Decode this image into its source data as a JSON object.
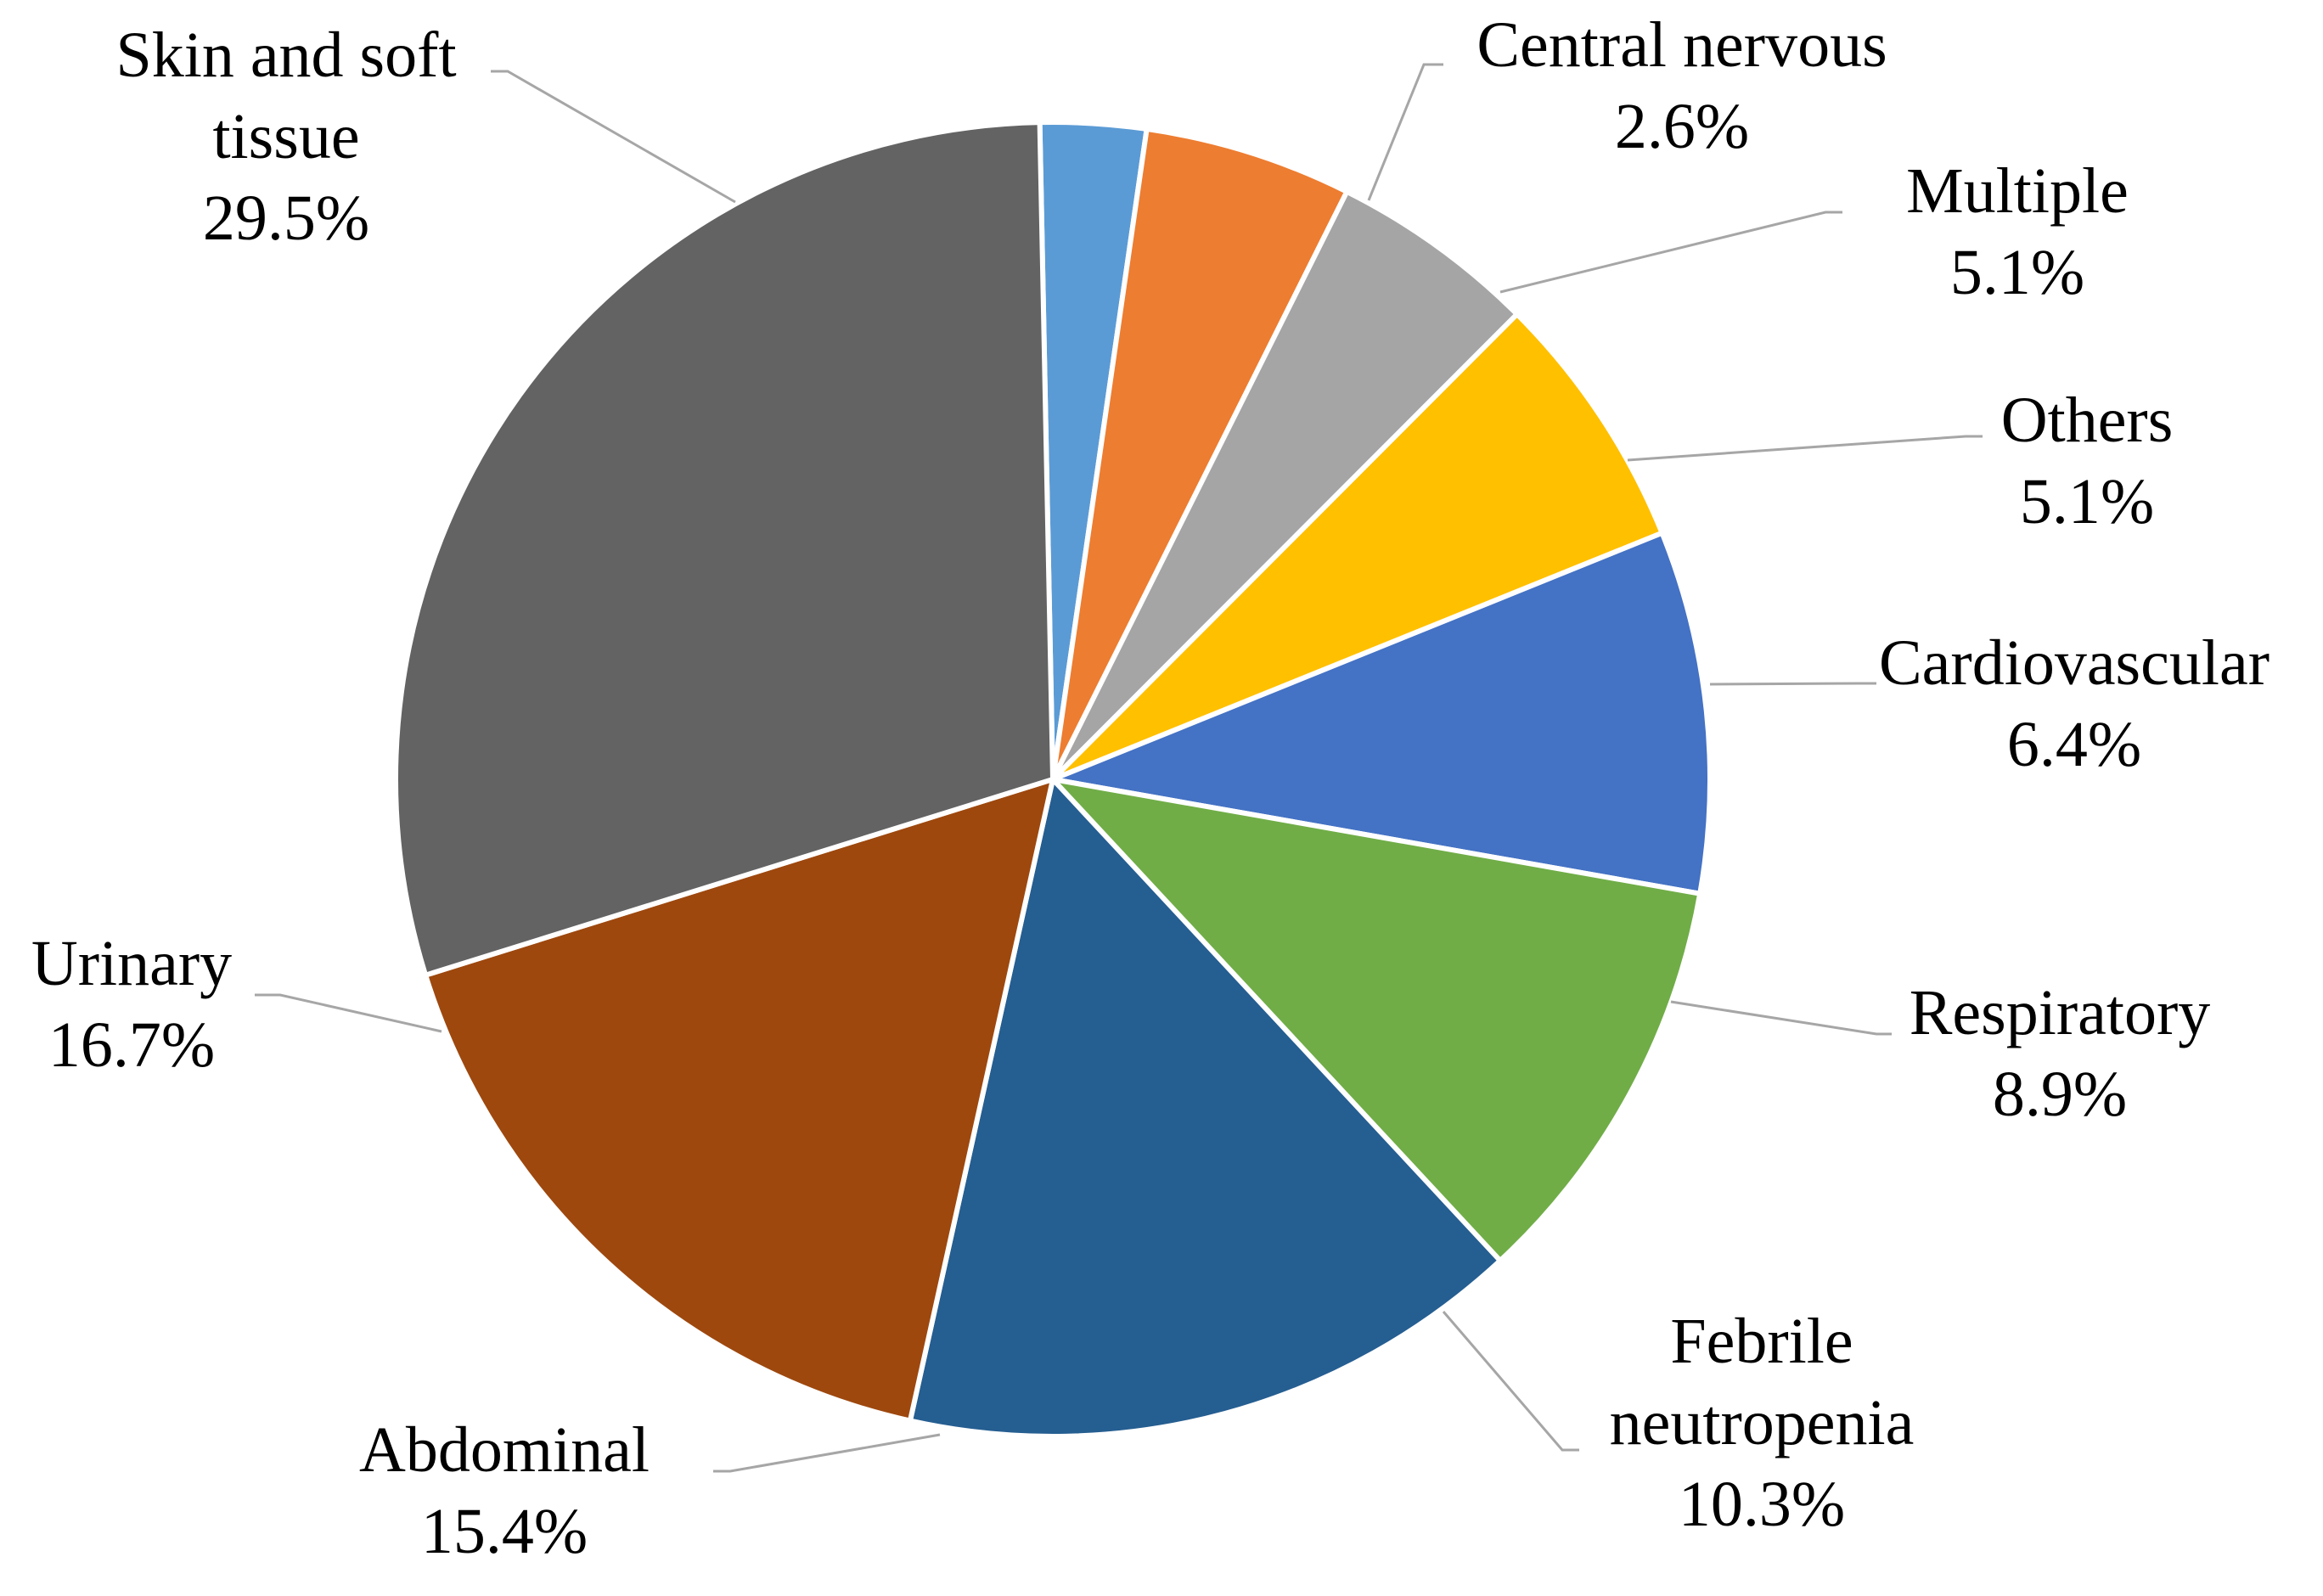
{
  "chart_data": {
    "type": "pie",
    "title": "",
    "slices": [
      {
        "name": "Central nervous",
        "value": 2.6,
        "label": "2.6%",
        "color": "#5b9bd5"
      },
      {
        "name": "Multiple",
        "value": 5.1,
        "label": "5.1%",
        "color": "#ed7d31"
      },
      {
        "name": "Others",
        "value": 5.1,
        "label": "5.1%",
        "color": "#a5a5a5"
      },
      {
        "name": "Cardiovascular",
        "value": 6.4,
        "label": "6.4%",
        "color": "#ffc000"
      },
      {
        "name": "Respiratory",
        "value": 8.9,
        "label": "8.9%",
        "color": "#4472c4"
      },
      {
        "name": "Febrile neutropenia",
        "value": 10.3,
        "label": "10.3%",
        "color": "#70ad47"
      },
      {
        "name": "Abdominal",
        "value": 15.4,
        "label": "15.4%",
        "color": "#255e91"
      },
      {
        "name": "Urinary",
        "value": 16.7,
        "label": "16.7%",
        "color": "#9e480e"
      },
      {
        "name": "Skin and soft tissue",
        "value": 29.5,
        "label": "29.5%",
        "color": "#636363"
      }
    ]
  }
}
